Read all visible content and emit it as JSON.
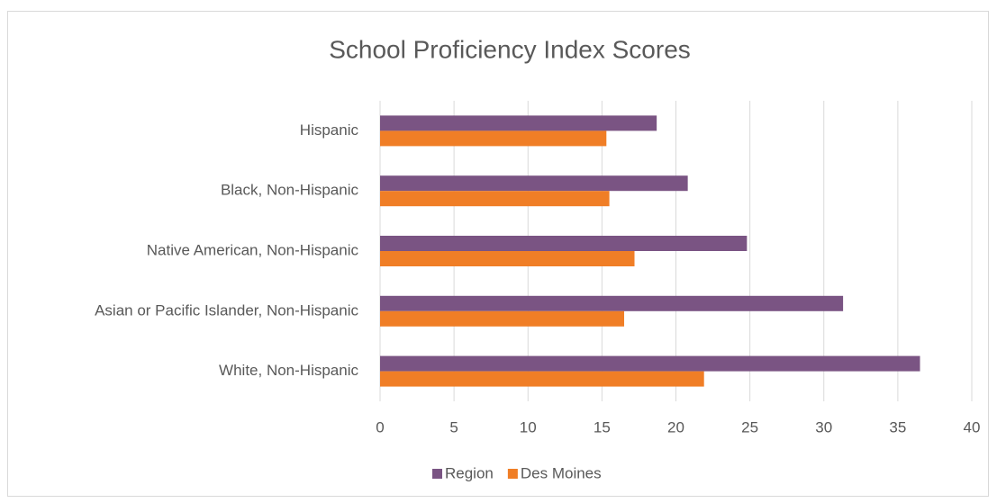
{
  "chart_data": {
    "type": "hbar",
    "title": "School Proficiency Index Scores",
    "categories": [
      "Hispanic",
      "Black, Non-Hispanic",
      "Native American, Non-Hispanic",
      "Asian or Pacific Islander, Non-Hispanic",
      "White, Non-Hispanic"
    ],
    "series": [
      {
        "name": "Region",
        "color": "#7a5483",
        "values": [
          18.7,
          20.8,
          24.8,
          31.3,
          36.5
        ]
      },
      {
        "name": "Des Moines",
        "color": "#f07e26",
        "values": [
          15.3,
          15.5,
          17.2,
          16.5,
          21.9
        ]
      }
    ],
    "xlim": [
      0,
      40
    ],
    "xticks": [
      0,
      5,
      10,
      15,
      20,
      25,
      30,
      35,
      40
    ],
    "grid": true,
    "legend": "bottom"
  }
}
